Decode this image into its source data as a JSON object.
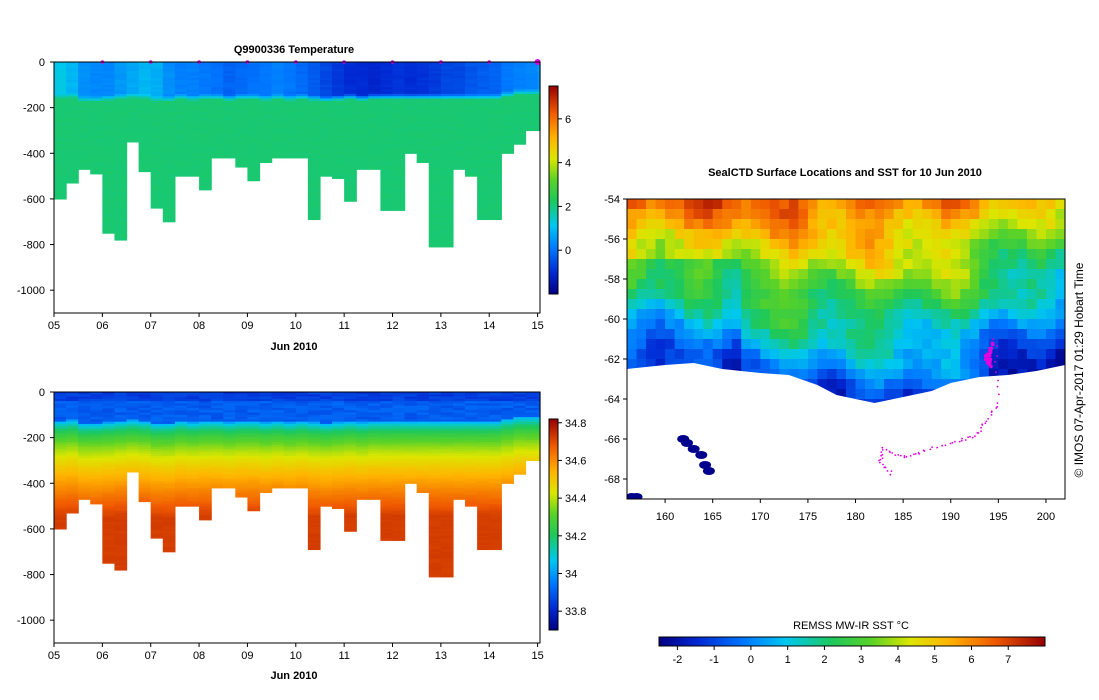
{
  "chart_data": [
    {
      "type": "heatmap",
      "title": "Q9900336  Temperature",
      "xlabel": "Jun 2010",
      "x_tick_labels": [
        "05",
        "06",
        "07",
        "08",
        "09",
        "10",
        "11",
        "12",
        "13",
        "14",
        "15"
      ],
      "x_range": [
        5,
        15.05
      ],
      "y_tick_labels": [
        "0",
        "-200",
        "-400",
        "-600",
        "-800",
        "-1000"
      ],
      "ylim": [
        -1100,
        0
      ],
      "colorbar_ticks": [
        "6",
        "4",
        "2",
        "0"
      ],
      "colorbar_range": [
        -2,
        7.5
      ],
      "profile_times": [
        5.0,
        5.25,
        5.5,
        5.75,
        6.0,
        6.25,
        6.5,
        6.75,
        7.0,
        7.25,
        7.5,
        7.75,
        8.0,
        8.25,
        8.5,
        8.75,
        9.0,
        9.25,
        9.5,
        9.75,
        10.0,
        10.25,
        10.5,
        10.75,
        11.0,
        11.25,
        11.5,
        11.75,
        12.0,
        12.25,
        12.5,
        12.75,
        13.0,
        13.25,
        13.5,
        13.75,
        14.0,
        14.25,
        14.5,
        14.75,
        15.0
      ],
      "profile_max_depth": [
        600,
        530,
        470,
        490,
        750,
        780,
        350,
        480,
        640,
        700,
        500,
        500,
        560,
        420,
        420,
        460,
        520,
        440,
        420,
        420,
        420,
        690,
        500,
        510,
        610,
        470,
        470,
        650,
        650,
        400,
        440,
        810,
        810,
        470,
        500,
        690,
        690,
        400,
        360,
        300,
        300
      ],
      "surface_temp": [
        1.2,
        0.9,
        0.4,
        0.3,
        0.3,
        0.5,
        0.7,
        0.9,
        0.8,
        0.4,
        0.2,
        0.2,
        0.1,
        0.0,
        -0.2,
        -0.1,
        0.0,
        0.1,
        0.2,
        0.1,
        -0.1,
        -0.3,
        -0.6,
        -0.8,
        -1.0,
        -1.0,
        -1.1,
        -1.0,
        -0.9,
        -1.0,
        -0.9,
        -0.8,
        -0.6,
        -0.6,
        -0.4,
        -0.3,
        -0.2,
        0.1,
        0.2,
        0.3,
        0.5
      ],
      "thermocline_depth": [
        150,
        145,
        160,
        160,
        155,
        150,
        145,
        150,
        160,
        160,
        150,
        155,
        150,
        150,
        155,
        150,
        150,
        155,
        150,
        155,
        150,
        155,
        160,
        155,
        150,
        155,
        150,
        150,
        150,
        150,
        150,
        150,
        150,
        150,
        150,
        150,
        150,
        140,
        130,
        130,
        130
      ],
      "deep_temp": 2.1,
      "surface_markers": [
        6,
        7,
        8,
        9,
        10,
        11,
        12,
        13,
        14,
        15
      ]
    },
    {
      "type": "heatmap",
      "title": "",
      "xlabel": "Jun 2010",
      "x_tick_labels": [
        "05",
        "06",
        "07",
        "08",
        "09",
        "10",
        "11",
        "12",
        "13",
        "14",
        "15"
      ],
      "x_range": [
        5,
        15.05
      ],
      "y_tick_labels": [
        "0",
        "-200",
        "-400",
        "-600",
        "-800",
        "-1000"
      ],
      "ylim": [
        -1100,
        0
      ],
      "colorbar_ticks": [
        "34.8",
        "34.6",
        "34.4",
        "34.2",
        "34",
        "33.8"
      ],
      "colorbar_range": [
        33.7,
        34.82
      ],
      "surface_salinity": 33.9,
      "deep_salinity": 34.72
    },
    {
      "type": "heatmap",
      "title": "SealCTD Surface Locations and SST for 10 Jun 2010",
      "x_tick_labels": [
        "160",
        "165",
        "170",
        "175",
        "180",
        "185",
        "190",
        "195",
        "200"
      ],
      "x_range": [
        156,
        202
      ],
      "y_tick_labels": [
        "-54",
        "-56",
        "-58",
        "-60",
        "-62",
        "-64",
        "-66",
        "-68"
      ],
      "y_range": [
        -69,
        -54
      ],
      "colorbar_label": "REMSS MW-IR SST °C",
      "colorbar_ticks": [
        "-2",
        "-1",
        "0",
        "1",
        "2",
        "3",
        "4",
        "5",
        "6",
        "7"
      ],
      "colorbar_range": [
        -2.5,
        8
      ],
      "track_points": [
        [
          194.2,
          -61.4
        ],
        [
          193.8,
          -61.9
        ],
        [
          194.1,
          -62.3
        ],
        [
          194.6,
          -61.0
        ],
        [
          195.0,
          -64.2
        ],
        [
          193.6,
          -65.2
        ],
        [
          192.5,
          -65.9
        ],
        [
          190.2,
          -66.2
        ],
        [
          187.0,
          -66.6
        ],
        [
          185.0,
          -66.9
        ],
        [
          183.0,
          -66.5
        ],
        [
          182.5,
          -67.2
        ],
        [
          184.0,
          -67.8
        ]
      ],
      "side_label": "© IMOS 07-Apr-2017 01:29 Hobart Time"
    }
  ]
}
